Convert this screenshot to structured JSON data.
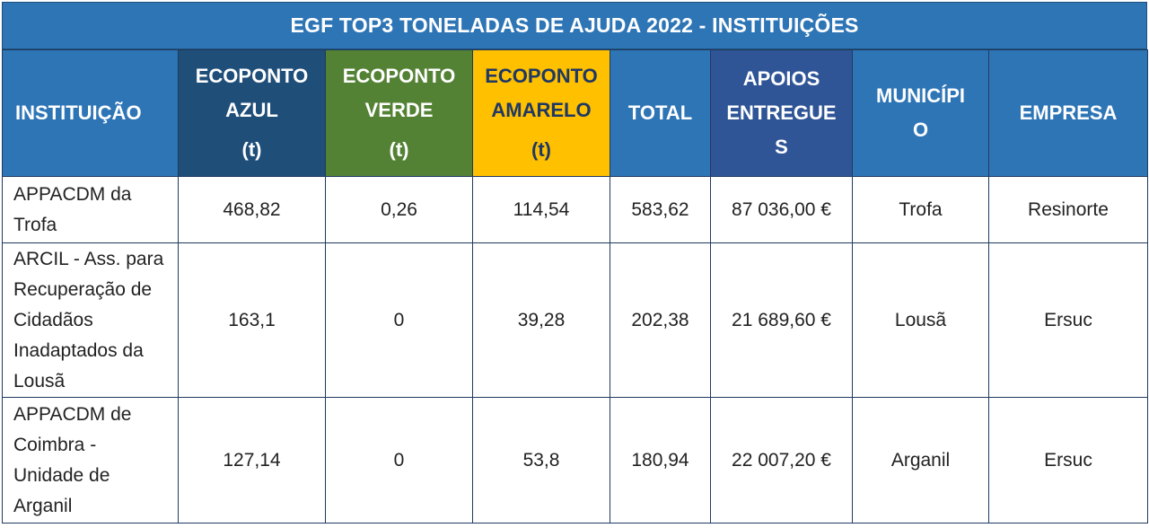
{
  "title": "EGF TOP3 TONELADAS DE AJUDA 2022 - INSTITUIÇÕES",
  "headers": {
    "instituicao": "INSTITUIÇÃO",
    "azul_l1": "ECOPONTO",
    "azul_l2": "AZUL",
    "azul_unit": "(t)",
    "verde_l1": "ECOPONTO",
    "verde_l2": "VERDE",
    "verde_unit": "(t)",
    "amarelo_l1": "ECOPONTO",
    "amarelo_l2": "AMARELO",
    "amarelo_unit": "(t)",
    "total": "TOTAL",
    "apoios_l1": "APOIOS",
    "apoios_l2": "ENTREGUE",
    "apoios_l3": "S",
    "municipio_l1": "MUNICÍPI",
    "municipio_l2": "O",
    "empresa": "EMPRESA"
  },
  "colors": {
    "header_blue": "#2e75b6",
    "azul": "#1f4e79",
    "verde": "#548235",
    "amarelo": "#ffc000",
    "apoios": "#2f5597"
  },
  "rows": [
    {
      "instituicao": [
        "APPACDM da",
        "Trofa"
      ],
      "azul": "468,82",
      "verde": "0,26",
      "amarelo": "114,54",
      "total": "583,62",
      "apoios": "87 036,00 €",
      "municipio": "Trofa",
      "empresa": "Resinorte"
    },
    {
      "instituicao": [
        "ARCIL - Ass. para",
        "Recuperação de",
        "Cidadãos",
        "Inadaptados da",
        "Lousã"
      ],
      "azul": "163,1",
      "verde": "0",
      "amarelo": "39,28",
      "total": "202,38",
      "apoios": "21 689,60 €",
      "municipio": "Lousã",
      "empresa": "Ersuc"
    },
    {
      "instituicao": [
        "APPACDM de",
        "Coimbra -",
        "Unidade de",
        "Arganil"
      ],
      "azul": "127,14",
      "verde": "0",
      "amarelo": "53,8",
      "total": "180,94",
      "apoios": "22 007,20 €",
      "municipio": "Arganil",
      "empresa": "Ersuc"
    }
  ]
}
